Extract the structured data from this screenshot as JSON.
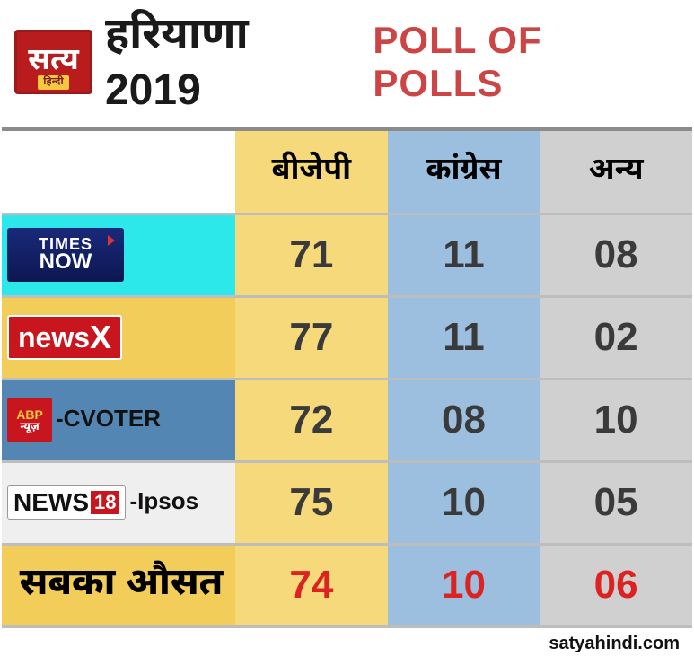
{
  "header": {
    "logo_text": "सत्य",
    "logo_sub": "हिन्दी",
    "title_hi": "हरियाणा 2019",
    "title_en": "POLL OF POLLS",
    "title_en_color": "#cc4444",
    "border_color": "#8b8b8b"
  },
  "columns": {
    "bjp": {
      "label": "बीजेपी",
      "bg": "#f6d97a"
    },
    "cong": {
      "label": "कांग्रेस",
      "bg": "#9cbfe0"
    },
    "other": {
      "label": "अन्य",
      "bg": "#d0d0d0"
    }
  },
  "rows": [
    {
      "source_bg": "#2ce8eb",
      "source_text": "",
      "badge_type": "timesnow",
      "bjp": "71",
      "cong": "11",
      "other": "08"
    },
    {
      "source_bg": "#f2cd5a",
      "source_text": "",
      "badge_type": "newsx",
      "bjp": "77",
      "cong": "11",
      "other": "02"
    },
    {
      "source_bg": "#5486b4",
      "source_text": "-CVOTER",
      "source_text_color": "#111",
      "badge_type": "abp",
      "bjp": "72",
      "cong": "08",
      "other": "10"
    },
    {
      "source_bg": "#efefef",
      "source_text": "-Ipsos",
      "source_text_color": "#111",
      "badge_type": "news18",
      "bjp": "75",
      "cong": "10",
      "other": "05"
    }
  ],
  "average": {
    "label": "सबका औसत",
    "label_bg": "#f2cd5a",
    "value_color": "#d22",
    "bjp": "74",
    "cong": "10",
    "other": "06"
  },
  "data_colors": {
    "bjp_cell_bg": "#f6d97a",
    "cong_cell_bg": "#9cbfe0",
    "other_cell_bg": "#d0d0d0",
    "value_color": "#3a3a3a"
  },
  "footer": "satyahindi.com"
}
